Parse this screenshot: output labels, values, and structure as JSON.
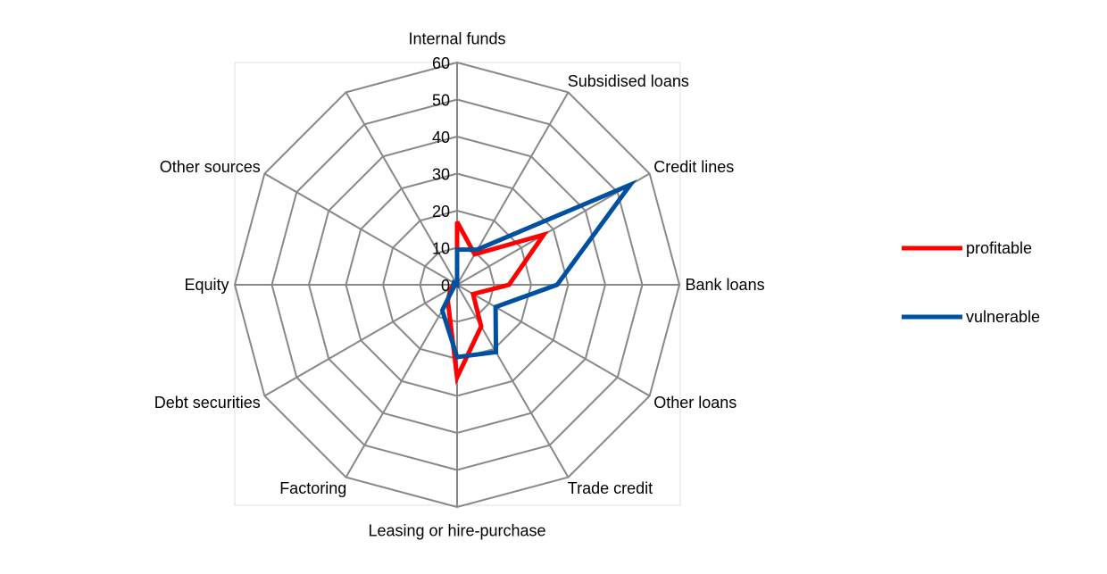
{
  "chart_data": {
    "type": "radar",
    "categories": [
      "Internal funds",
      "Subsidised loans",
      "Credit lines",
      "Bank loans",
      "Other loans",
      "Trade credit",
      "Leasing or hire-purchase",
      "Factoring",
      "Debt securities",
      "Equity",
      "Other sources",
      ""
    ],
    "rlim": [
      0,
      60
    ],
    "ticks": [
      "0",
      "10",
      "20",
      "30",
      "40",
      "50",
      "60"
    ],
    "tick_values": [
      0,
      10,
      20,
      30,
      40,
      50,
      60
    ],
    "series": [
      {
        "name": "profitable",
        "color": "#ff0000",
        "values": [
          17,
          9.5,
          27,
          14,
          5,
          13,
          25,
          5,
          2,
          1,
          1,
          0
        ]
      },
      {
        "name": "vulnerable",
        "color": "#0050a0",
        "values": [
          9.5,
          11,
          54,
          27,
          12,
          21,
          19.5,
          8,
          1,
          1,
          1,
          0
        ]
      }
    ],
    "legend_position": "right"
  }
}
